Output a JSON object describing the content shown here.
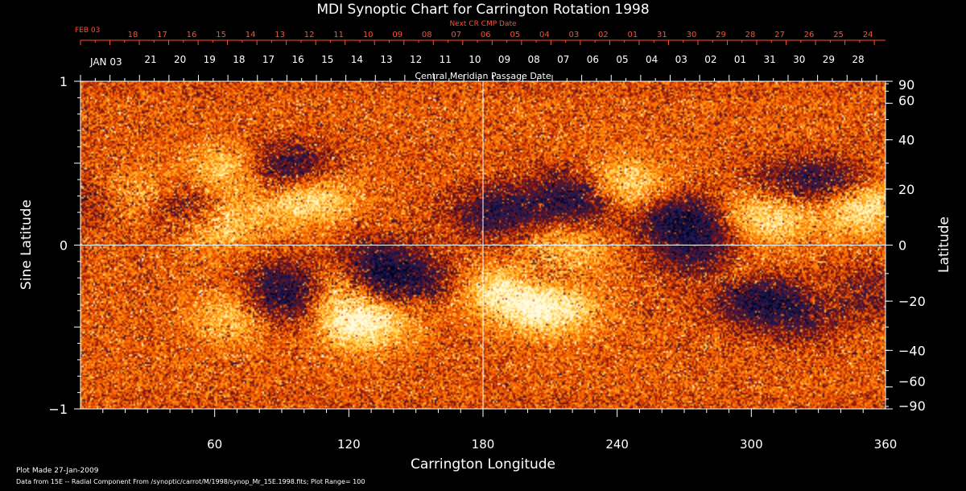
{
  "chart_data": {
    "type": "heatmap",
    "title": "MDI Synoptic Chart for Carrington Rotation 1998",
    "xlabel": "Carrington Longitude",
    "ylabel_left": "Sine Latitude",
    "ylabel_right": "Latitude",
    "xlim": [
      0,
      360
    ],
    "ylim": [
      -1,
      1
    ],
    "x_ticks": [
      60,
      120,
      180,
      240,
      300,
      360
    ],
    "y_ticks_left": [
      "1",
      "0",
      "−1"
    ],
    "y_ticks_right": [
      {
        "lat": 90,
        "label": "90"
      },
      {
        "lat": 60,
        "label": "60"
      },
      {
        "lat": 40,
        "label": "40"
      },
      {
        "lat": 20,
        "label": "20"
      },
      {
        "lat": 0,
        "label": "0"
      },
      {
        "lat": -20,
        "label": "−20"
      },
      {
        "lat": -40,
        "label": "−40"
      },
      {
        "lat": -60,
        "label": "−60"
      },
      {
        "lat": -90,
        "label": "−90"
      }
    ],
    "next_cr_axis": {
      "label": "Next CR CMP Date",
      "first_label": "FEB 03",
      "dates": [
        "18",
        "17",
        "16",
        "15",
        "14",
        "13",
        "12",
        "11",
        "10",
        "09",
        "08",
        "07",
        "06",
        "05",
        "04",
        "03",
        "02",
        "01",
        "31",
        "30",
        "29",
        "28",
        "27",
        "26",
        "25",
        "24"
      ]
    },
    "cmp_axis": {
      "label": "Central Meridian Passage Date",
      "first_label": "JAN 03",
      "dates": [
        "21",
        "20",
        "19",
        "18",
        "17",
        "16",
        "15",
        "14",
        "13",
        "12",
        "11",
        "10",
        "09",
        "08",
        "07",
        "06",
        "05",
        "04",
        "03",
        "02",
        "01",
        "31",
        "30",
        "29",
        "28"
      ]
    },
    "plot_range": 100,
    "colormap": [
      "#000020",
      "#1c1c5a",
      "#7a1010",
      "#e04000",
      "#ff7a00",
      "#ffd040",
      "#fffbe0"
    ],
    "regions": [
      {
        "lon": 20,
        "sinlat": 0.28,
        "polarity": 1,
        "strength": 0.8
      },
      {
        "lon": 12,
        "sinlat": 0.27,
        "polarity": -1,
        "strength": 0.7
      },
      {
        "lon": 50,
        "sinlat": 0.2,
        "polarity": -1,
        "strength": 0.9
      },
      {
        "lon": 58,
        "sinlat": 0.15,
        "polarity": 1,
        "strength": 0.9
      },
      {
        "lon": 70,
        "sinlat": 0.45,
        "polarity": 1,
        "strength": 0.6
      },
      {
        "lon": 90,
        "sinlat": 0.45,
        "polarity": -1,
        "strength": 0.9
      },
      {
        "lon": 100,
        "sinlat": 0.3,
        "polarity": 1,
        "strength": 0.7
      },
      {
        "lon": 75,
        "sinlat": -0.43,
        "polarity": 1,
        "strength": 0.8
      },
      {
        "lon": 85,
        "sinlat": -0.41,
        "polarity": -1,
        "strength": 0.7
      },
      {
        "lon": 95,
        "sinlat": -0.25,
        "polarity": -1,
        "strength": 0.7
      },
      {
        "lon": 118,
        "sinlat": -0.25,
        "polarity": 1,
        "strength": 1.0
      },
      {
        "lon": 125,
        "sinlat": -0.45,
        "polarity": 1,
        "strength": 0.9
      },
      {
        "lon": 130,
        "sinlat": -0.28,
        "polarity": -1,
        "strength": 1.0
      },
      {
        "lon": 133,
        "sinlat": -0.12,
        "polarity": -1,
        "strength": 0.6
      },
      {
        "lon": 148,
        "sinlat": -0.29,
        "polarity": 1,
        "strength": 0.8
      },
      {
        "lon": 152,
        "sinlat": -0.26,
        "polarity": -1,
        "strength": 0.9
      },
      {
        "lon": 190,
        "sinlat": -0.27,
        "polarity": 1,
        "strength": 0.7
      },
      {
        "lon": 187,
        "sinlat": 0.2,
        "polarity": -1,
        "strength": 0.6
      },
      {
        "lon": 213,
        "sinlat": -0.08,
        "polarity": 1,
        "strength": 0.9
      },
      {
        "lon": 208,
        "sinlat": -0.15,
        "polarity": -1,
        "strength": 0.9
      },
      {
        "lon": 210,
        "sinlat": -0.38,
        "polarity": 1,
        "strength": 0.7
      },
      {
        "lon": 225,
        "sinlat": 0.3,
        "polarity": -1,
        "strength": 0.9
      },
      {
        "lon": 240,
        "sinlat": 0.35,
        "polarity": 1,
        "strength": 0.8
      },
      {
        "lon": 270,
        "sinlat": 0.15,
        "polarity": -1,
        "strength": 0.8
      },
      {
        "lon": 280,
        "sinlat": -0.1,
        "polarity": -1,
        "strength": 0.7
      },
      {
        "lon": 290,
        "sinlat": -0.18,
        "polarity": 1,
        "strength": 0.7
      },
      {
        "lon": 300,
        "sinlat": -0.3,
        "polarity": -1,
        "strength": 0.8
      },
      {
        "lon": 305,
        "sinlat": 0.2,
        "polarity": 1,
        "strength": 0.7
      },
      {
        "lon": 315,
        "sinlat": 0.32,
        "polarity": -1,
        "strength": 1.0
      },
      {
        "lon": 320,
        "sinlat": 0.3,
        "polarity": 1,
        "strength": 0.8
      },
      {
        "lon": 335,
        "sinlat": 0.35,
        "polarity": -1,
        "strength": 0.8
      },
      {
        "lon": 348,
        "sinlat": 0.25,
        "polarity": 1,
        "strength": 0.8
      },
      {
        "lon": 325,
        "sinlat": -0.4,
        "polarity": -1,
        "strength": 0.7
      },
      {
        "lon": 335,
        "sinlat": -0.33,
        "polarity": 1,
        "strength": 0.8
      },
      {
        "lon": 345,
        "sinlat": -0.3,
        "polarity": -1,
        "strength": 0.7
      }
    ]
  },
  "footer": {
    "plot_made": "Plot Made 27-Jan-2009",
    "data_from": "Data from 15E -- Radial Component From /synoptic/carrot/M/1998/synop_Mr_15E.1998.fits; Plot Range=  100"
  }
}
